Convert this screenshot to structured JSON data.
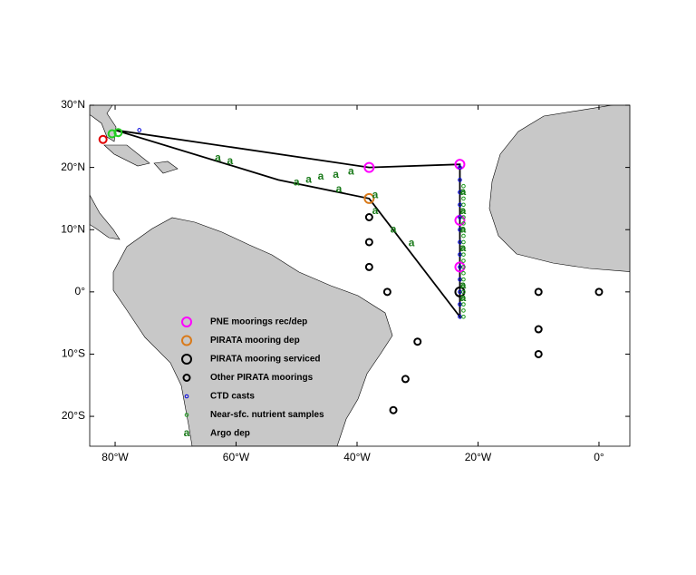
{
  "map_data": {
    "type": "map",
    "xlim": [
      -84.2,
      5.1
    ],
    "ylim": [
      -24.8,
      30
    ],
    "xticks": [
      {
        "value": -80,
        "label": "80°W"
      },
      {
        "value": -60,
        "label": "60°W"
      },
      {
        "value": -40,
        "label": "40°W"
      },
      {
        "value": -20,
        "label": "20°W"
      },
      {
        "value": 0,
        "label": "0°"
      }
    ],
    "yticks": [
      {
        "value": 30,
        "label": "30°N"
      },
      {
        "value": 20,
        "label": "20°N"
      },
      {
        "value": 10,
        "label": "10°N"
      },
      {
        "value": 0,
        "label": "0°"
      },
      {
        "value": -10,
        "label": "10°S"
      },
      {
        "value": -20,
        "label": "20°S"
      }
    ],
    "track": [
      [
        -80,
        26
      ],
      [
        -53,
        18
      ],
      [
        -38,
        15
      ],
      [
        -23,
        -4
      ],
      [
        -23,
        20.5
      ],
      [
        -38,
        20
      ],
      [
        -80,
        26
      ]
    ],
    "layers": [
      {
        "name": "PNE moorings rec/dep",
        "color": "#ff00ff",
        "symbol": "circle",
        "size": 5,
        "points": [
          [
            -38,
            20
          ],
          [
            -23,
            20.5
          ],
          [
            -23,
            11.5
          ],
          [
            -23,
            4
          ]
        ]
      },
      {
        "name": "PIRATA mooring dep",
        "color": "#d97a1a",
        "symbol": "circle",
        "size": 5,
        "points": [
          [
            -38,
            15
          ]
        ]
      },
      {
        "name": "PIRATA mooring serviced",
        "color": "#000000",
        "symbol": "circle",
        "size": 5,
        "points": [
          [
            -23,
            0
          ]
        ]
      },
      {
        "name": "Other PIRATA moorings",
        "color": "#000000",
        "symbol": "circle",
        "size": 3.5,
        "points": [
          [
            -38,
            12
          ],
          [
            -38,
            8
          ],
          [
            -38,
            4
          ],
          [
            -35,
            0
          ],
          [
            -30,
            -8
          ],
          [
            -32,
            -14
          ],
          [
            -34,
            -19
          ],
          [
            -10,
            0
          ],
          [
            0,
            0
          ],
          [
            -10,
            -6
          ],
          [
            -10,
            -10
          ]
        ]
      },
      {
        "name": "CTD casts",
        "color": "#0000dd",
        "symbol": "circle",
        "size": 1.8,
        "points": [
          [
            -76,
            26
          ],
          [
            -23,
            20
          ],
          [
            -23,
            18
          ],
          [
            -23,
            16
          ],
          [
            -23,
            14
          ],
          [
            -23,
            12
          ],
          [
            -23,
            10
          ],
          [
            -23,
            8
          ],
          [
            -23,
            6
          ],
          [
            -23,
            4
          ],
          [
            -23,
            2
          ],
          [
            -23,
            0
          ],
          [
            -23,
            -2
          ],
          [
            -23,
            -4
          ]
        ]
      },
      {
        "name": "Near-sfc. nutrient samples",
        "color": "#1a9a1a",
        "symbol": "circle",
        "size": 1.8,
        "points": [
          [
            -22.4,
            17
          ],
          [
            -22.4,
            16
          ],
          [
            -22.4,
            15
          ],
          [
            -22.4,
            14
          ],
          [
            -22.4,
            13
          ],
          [
            -22.4,
            12
          ],
          [
            -22.4,
            11
          ],
          [
            -22.4,
            10
          ],
          [
            -22.4,
            9
          ],
          [
            -22.4,
            8
          ],
          [
            -22.4,
            7
          ],
          [
            -22.4,
            6
          ],
          [
            -22.4,
            5
          ],
          [
            -22.4,
            4
          ],
          [
            -22.4,
            3
          ],
          [
            -22.4,
            2
          ],
          [
            -22.4,
            1
          ],
          [
            -22.4,
            0
          ],
          [
            -22.4,
            -1
          ],
          [
            -22.4,
            -2
          ],
          [
            -22.4,
            -3
          ],
          [
            -22.4,
            -4
          ]
        ]
      },
      {
        "name": "Argo dep",
        "color": "#1a7a1a",
        "symbol": "letter",
        "symbol_text": "a",
        "points": [
          [
            -63,
            21.5
          ],
          [
            -61,
            21
          ],
          [
            -50,
            17.6
          ],
          [
            -48,
            18
          ],
          [
            -46,
            18.5
          ],
          [
            -43.5,
            18.8
          ],
          [
            -41,
            19.3
          ],
          [
            -43,
            16.5
          ],
          [
            -37,
            15.5
          ],
          [
            -37,
            13
          ],
          [
            -34,
            10
          ],
          [
            -31,
            7.8
          ],
          [
            -22.5,
            16
          ],
          [
            -22.5,
            13
          ],
          [
            -22.5,
            10
          ],
          [
            -22.5,
            7
          ],
          [
            -22.5,
            1
          ],
          [
            -22.5,
            -1
          ]
        ]
      },
      {
        "color": "#e00000",
        "symbol": "circle",
        "size": 4,
        "points": [
          [
            -82,
            24.5
          ]
        ]
      },
      {
        "color": "#22cc22",
        "symbol": "circle",
        "size": 4,
        "points": [
          [
            -79.5,
            25.6
          ],
          [
            -80.5,
            25.4
          ]
        ]
      }
    ]
  }
}
